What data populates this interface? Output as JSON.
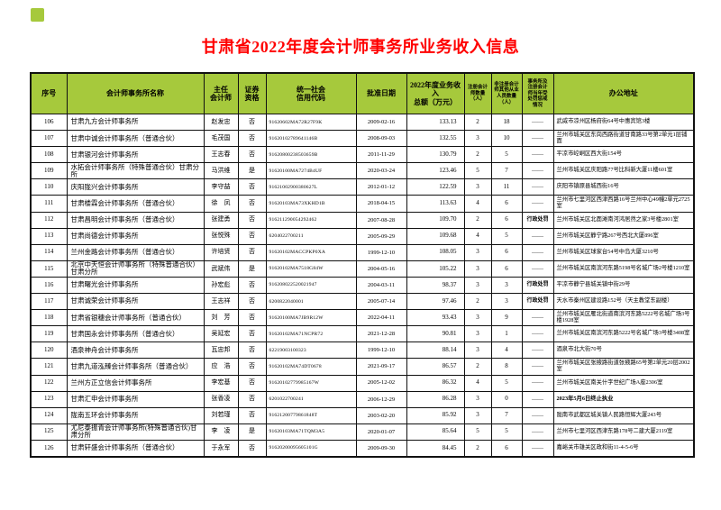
{
  "page": {
    "title": "甘肃省2022年度会计师事务所业务收入信息"
  },
  "colors": {
    "header_bg": "#a6c93c",
    "title_color": "#ff0000",
    "marker_green": "#a6c93c"
  },
  "table": {
    "columns": [
      {
        "key": "seq",
        "label": "序号",
        "small": false
      },
      {
        "key": "name",
        "label": "会计师事务所名称",
        "small": false
      },
      {
        "key": "chief",
        "label": "主任\n会计师",
        "small": false
      },
      {
        "key": "sec",
        "label": "证券\n资格",
        "small": false
      },
      {
        "key": "code",
        "label": "统一社会\n信用代码",
        "small": false
      },
      {
        "key": "date",
        "label": "批准日期",
        "small": false
      },
      {
        "key": "revenue",
        "label": "2022年度业务收入\n总额（万元）",
        "small": false
      },
      {
        "key": "cpa",
        "label": "注册会计\n师数量\n（人）",
        "small": true
      },
      {
        "key": "noncpa",
        "label": "非注册会计\n师其他从业\n人员数量\n（人）",
        "small": true
      },
      {
        "key": "punish",
        "label": "事务所及\n注册会计\n师当年受\n处罚惩戒\n情况",
        "small": true
      },
      {
        "key": "address",
        "label": "办公地址",
        "small": false
      }
    ],
    "rows": [
      {
        "seq": "106",
        "name": "甘肃九方会计师事务所",
        "chief": "赵发忠",
        "sec": "否",
        "code": "91620602MA72R27F9K",
        "date": "2009-02-16",
        "revenue": "133.13",
        "cpa": "2",
        "noncpa": "18",
        "punish": "——",
        "address": "武威市凉州区杨府街64号中惠宾馆3楼",
        "address_bold": false
      },
      {
        "seq": "107",
        "name": "甘肃中诚会计师事务所（普通合伙）",
        "chief": "毛茂国",
        "sec": "否",
        "code": "91620102789641146B",
        "date": "2008-09-03",
        "revenue": "132.55",
        "cpa": "3",
        "noncpa": "10",
        "punish": "——",
        "address": "兰州市城关区东岗西路街道甘南路33号第2单元1层铺面",
        "address_bold": false
      },
      {
        "seq": "108",
        "name": "甘肃银河会计师事务所",
        "chief": "王志春",
        "sec": "否",
        "code": "91620800238503659B",
        "date": "2011-11-29",
        "revenue": "130.79",
        "cpa": "2",
        "noncpa": "5",
        "punish": "——",
        "address": "平凉市崆峒区西大街154号",
        "address_bold": false
      },
      {
        "seq": "109",
        "name": "水拓会计师事务所（特殊普通合伙）甘肃分所",
        "chief": "马洪维",
        "sec": "是",
        "code": "91620100MA7274B4UF",
        "date": "2020-03-24",
        "revenue": "123.46",
        "cpa": "5",
        "noncpa": "7",
        "punish": "——",
        "address": "兰州市城关区庆阳路77号比科新大厦11楼601室",
        "address_bold": false
      },
      {
        "seq": "110",
        "name": "庆阳陇兴会计师事务所",
        "chief": "李守喆",
        "sec": "否",
        "code": "91621002900380627L",
        "date": "2012-01-12",
        "revenue": "122.59",
        "cpa": "3",
        "noncpa": "11",
        "punish": "——",
        "address": "庆阳市镇原县城西街16号",
        "address_bold": false
      },
      {
        "seq": "111",
        "name": "甘肃楼霖会计师事务所（普通合伙）",
        "chief": "徐　凤",
        "sec": "否",
        "code": "91620103MA73XKHD1B",
        "date": "2018-04-15",
        "revenue": "113.63",
        "cpa": "4",
        "noncpa": "6",
        "punish": "——",
        "address": "兰州市七里河区西津西路16号兰州中心49幢2单元2725室",
        "address_bold": false
      },
      {
        "seq": "112",
        "name": "甘肃昌明会计师事务所（普通合伙）",
        "chief": "张建勇",
        "sec": "否",
        "code": "916211290054292462",
        "date": "2007-08-28",
        "revenue": "109.70",
        "cpa": "2",
        "noncpa": "6",
        "punish": "行政处罚",
        "address": "兰州市城关区北面滩南河鸿居然之家3号楼2801室",
        "address_bold": false
      },
      {
        "seq": "113",
        "name": "甘肃尚德会计师事务所",
        "chief": "张悦殊",
        "sec": "否",
        "code": "6204022700211",
        "date": "2005-09-29",
        "revenue": "109.68",
        "cpa": "4",
        "noncpa": "5",
        "punish": "——",
        "address": "兰州市城关区静宁路267号西北大厦896室",
        "address_bold": false
      },
      {
        "seq": "114",
        "name": "兰州金路会计师事务所（普通合伙）",
        "chief": "许培贤",
        "sec": "否",
        "code": "91620102MACCPKP0XA",
        "date": "1999-12-10",
        "revenue": "108.05",
        "cpa": "3",
        "noncpa": "6",
        "punish": "——",
        "address": "兰州市城关区球家台54号中岛大厦3210号",
        "address_bold": false
      },
      {
        "seq": "115",
        "name": "北京中天恒会计师事务所（特殊普通合伙）甘肃分所",
        "chief": "武斌伟",
        "sec": "是",
        "code": "91620102MA7518G84W",
        "date": "2004-05-16",
        "revenue": "105.22",
        "cpa": "3",
        "noncpa": "6",
        "punish": "——",
        "address": "兰州市城关区南滨河东路5198号名城广场2号楼1210室",
        "address_bold": false
      },
      {
        "seq": "116",
        "name": "甘肃曙光会计师事务所",
        "chief": "孙宏彪",
        "sec": "否",
        "code": "916208022520021947",
        "date": "2004-03-11",
        "revenue": "98.37",
        "cpa": "3",
        "noncpa": "3",
        "punish": "行政处罚",
        "address": "平凉市静宁县城关镇中街29号",
        "address_bold": false
      },
      {
        "seq": "117",
        "name": "甘肃诚荣会计师事务所",
        "chief": "王志祥",
        "sec": "否",
        "code": "6200822040001",
        "date": "2005-07-14",
        "revenue": "97.46",
        "cpa": "2",
        "noncpa": "3",
        "punish": "行政处罚",
        "address": "天水市秦州区建设路152号（天主教堂东副楼）",
        "address_bold": false
      },
      {
        "seq": "118",
        "name": "甘肃省银穗会计师事务所（普通合伙）",
        "chief": "刘　芳",
        "sec": "否",
        "code": "91620100MA7JB9R12W",
        "date": "2022-04-11",
        "revenue": "93.43",
        "cpa": "3",
        "noncpa": "9",
        "punish": "——",
        "address": "兰州市城关区雁北街道南滨河东路5222号名城广场3号楼1928室",
        "address_bold": false
      },
      {
        "seq": "119",
        "name": "甘肃国永会计师事务所（普通合伙）",
        "chief": "吴延宏",
        "sec": "否",
        "code": "91620102MA71NCPR72",
        "date": "2021-12-28",
        "revenue": "90.81",
        "cpa": "3",
        "noncpa": "1",
        "punish": "——",
        "address": "兰州市城关区南滨河东路5222号名城广场3号楼3408室",
        "address_bold": false
      },
      {
        "seq": "120",
        "name": "酒泉神舟会计师事务所",
        "chief": "瓦忠邦",
        "sec": "否",
        "code": "62219003100323",
        "date": "1999-12-10",
        "revenue": "88.14",
        "cpa": "3",
        "noncpa": "4",
        "punish": "——",
        "address": "酒泉市北大街70号",
        "address_bold": false
      },
      {
        "seq": "121",
        "name": "甘肃九道泓臻会计师事务所（普通合伙）",
        "chief": "应　浩",
        "sec": "否",
        "code": "91620102MA74DT0678",
        "date": "2021-09-17",
        "revenue": "86.57",
        "cpa": "2",
        "noncpa": "8",
        "punish": "——",
        "address": "兰州市城关区张掖路街道张掖路65号第2单元20层2002室",
        "address_bold": false
      },
      {
        "seq": "122",
        "name": "兰州方正立信会计师事务所",
        "chief": "李宏基",
        "sec": "否",
        "code": "91620102779985167W",
        "date": "2005-12-02",
        "revenue": "86.32",
        "cpa": "4",
        "noncpa": "5",
        "punish": "——",
        "address": "兰州市城关区南关什字世纪广场A座2306室",
        "address_bold": false
      },
      {
        "seq": "123",
        "name": "甘肃汇申会计师事务所",
        "chief": "张香凌",
        "sec": "否",
        "code": "6201022700241",
        "date": "2006-12-29",
        "revenue": "86.28",
        "cpa": "3",
        "noncpa": "0",
        "punish": "——",
        "address": "2023年5月6日终止执业",
        "address_bold": true
      },
      {
        "seq": "124",
        "name": "陇南五环会计师事务所",
        "chief": "刘若瑾",
        "sec": "否",
        "code": "91621200779861848T",
        "date": "2003-02-20",
        "revenue": "85.92",
        "cpa": "3",
        "noncpa": "7",
        "punish": "——",
        "address": "陇南市武都区城关镇人民路恒辉大厦243号",
        "address_bold": false
      },
      {
        "seq": "125",
        "name": "尤尼泰振青会计师事务所(特殊普通合伙)甘肃分所",
        "chief": "李　凌",
        "sec": "是",
        "code": "91620103MA71TQM3A5",
        "date": "2020-01-07",
        "revenue": "85.64",
        "cpa": "5",
        "noncpa": "5",
        "punish": "——",
        "address": "兰州市七里河区西津东路178号二建大厦2119室",
        "address_bold": false
      },
      {
        "seq": "126",
        "name": "甘肃轩盛会计师事务所（普通合伙）",
        "chief": "于永军",
        "sec": "否",
        "code": "91620200095605101G",
        "date": "2009-09-30",
        "revenue": "84.45",
        "cpa": "2",
        "noncpa": "6",
        "punish": "——",
        "address": "嘉峪关市雄关区政和街11-4-5-6号",
        "address_bold": false
      }
    ]
  }
}
